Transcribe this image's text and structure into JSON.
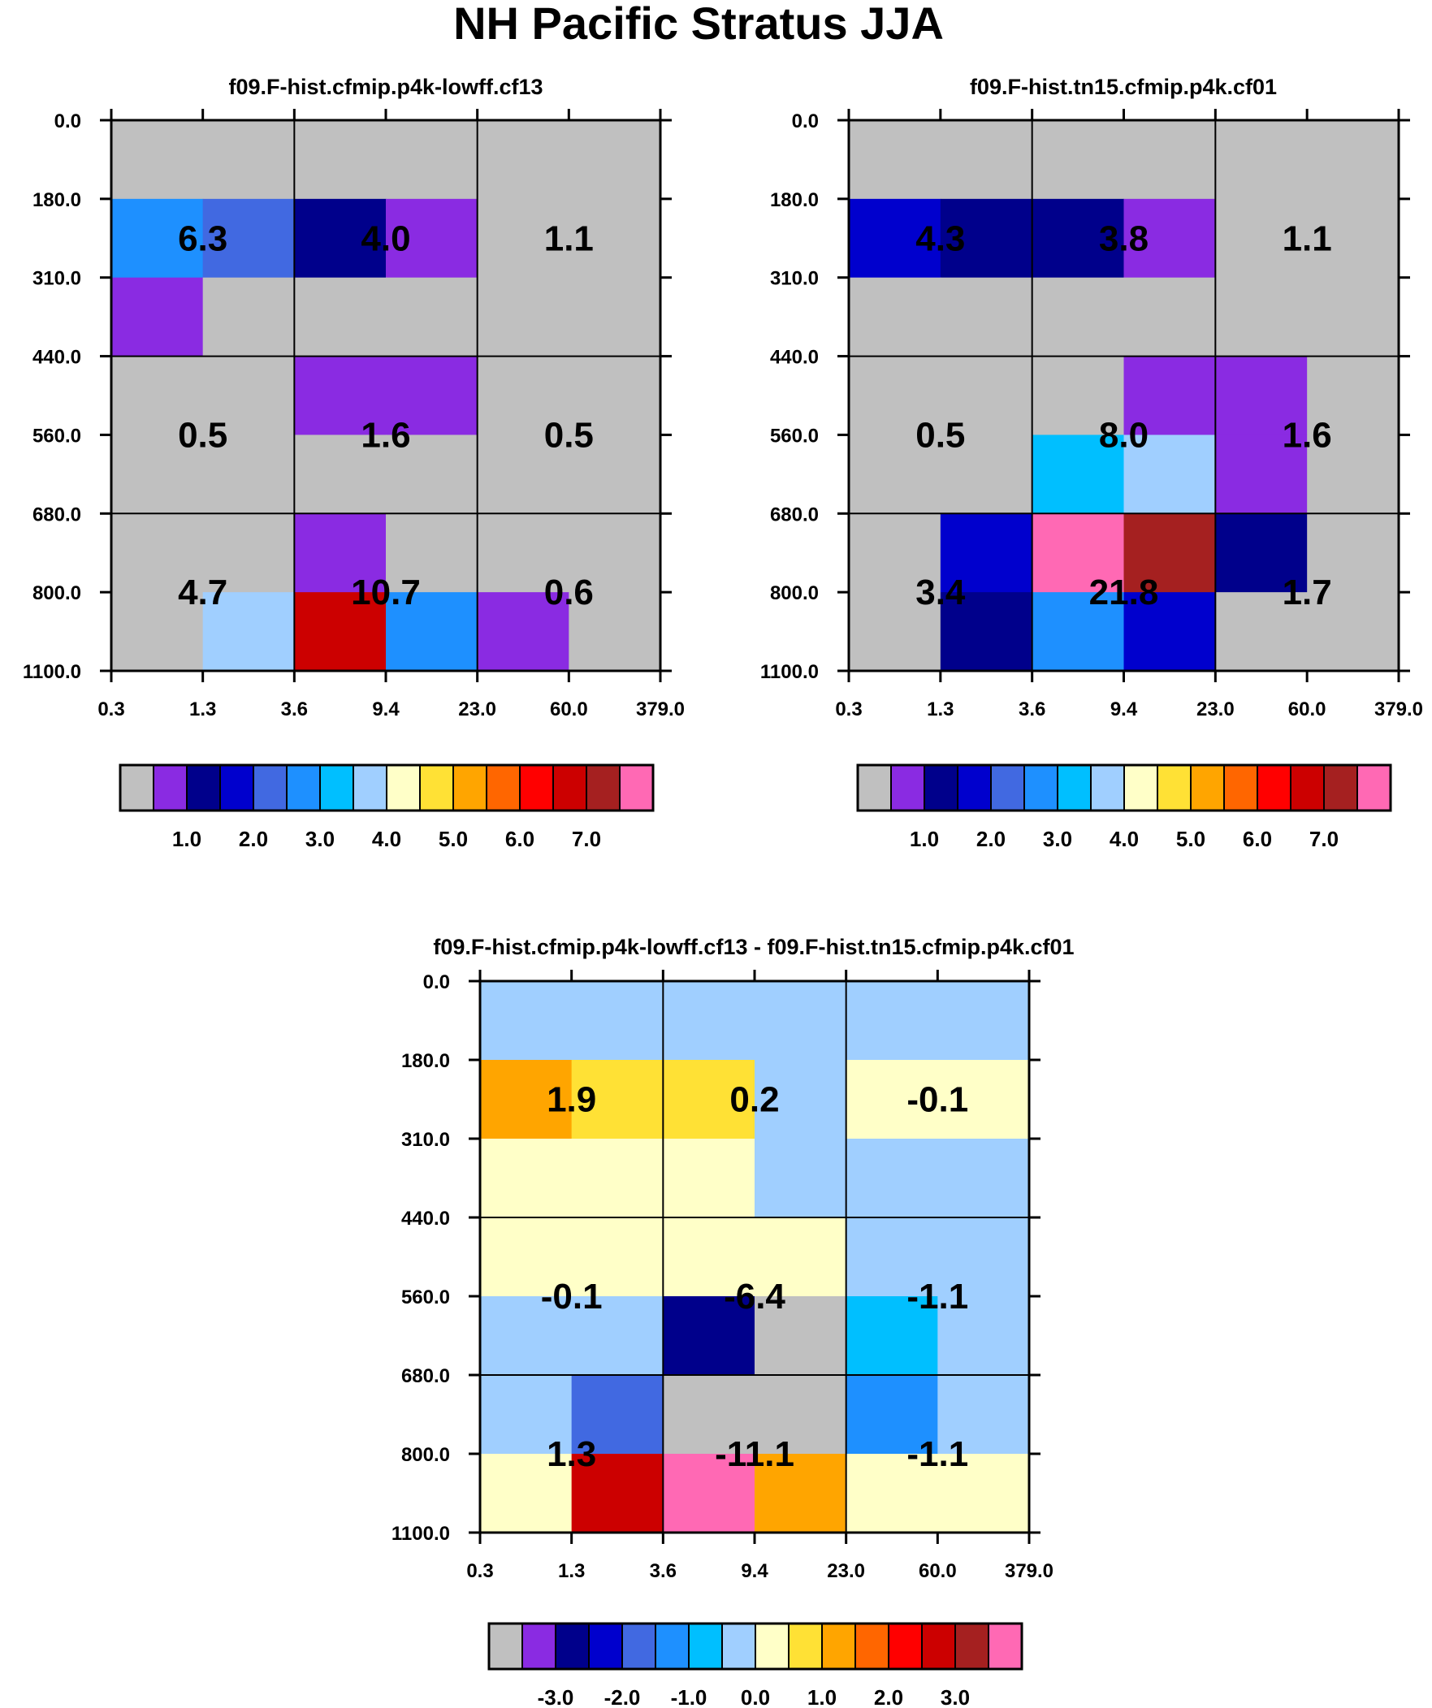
{
  "title": "NH Pacific Stratus JJA",
  "colors": {
    "cmap": [
      "#c0c0c0",
      "#8a2be2",
      "#00008b",
      "#0000cd",
      "#4169e1",
      "#1e90ff",
      "#00bfff",
      "#a0cfff",
      "#ffffc8",
      "#ffe135",
      "#ffa500",
      "#ff6600",
      "#ff0000",
      "#cc0000",
      "#a52020",
      "#ff69b4"
    ]
  },
  "chart_data": [
    {
      "type": "heatmap",
      "panel": "top-left",
      "title": "f09.F-hist.cfmip.p4k-lowff.cf13",
      "x_ticks": [
        "0.3",
        "1.3",
        "3.6",
        "9.4",
        "23.0",
        "60.0",
        "379.0"
      ],
      "y_ticks": [
        "0.0",
        "180.0",
        "310.0",
        "440.0",
        "560.0",
        "680.0",
        "800.0",
        "1100.0"
      ],
      "cells": [
        [
          0,
          0,
          0,
          0,
          0,
          0
        ],
        [
          5,
          4,
          2,
          1,
          0,
          0
        ],
        [
          1,
          0,
          0,
          0,
          0,
          0
        ],
        [
          0,
          0,
          1,
          1,
          0,
          0
        ],
        [
          0,
          0,
          0,
          0,
          0,
          0
        ],
        [
          0,
          0,
          1,
          0,
          0,
          0
        ],
        [
          0,
          7,
          13,
          5,
          1,
          0
        ]
      ],
      "block_values": [
        [
          "6.3",
          "4.0",
          "1.1"
        ],
        [
          "0.5",
          "1.6",
          "0.5"
        ],
        [
          "4.7",
          "10.7",
          "0.6"
        ]
      ],
      "colorbar_labels": [
        "1.0",
        "2.0",
        "3.0",
        "4.0",
        "5.0",
        "6.0",
        "7.0"
      ]
    },
    {
      "type": "heatmap",
      "panel": "top-right",
      "title": "f09.F-hist.tn15.cfmip.p4k.cf01",
      "x_ticks": [
        "0.3",
        "1.3",
        "3.6",
        "9.4",
        "23.0",
        "60.0",
        "379.0"
      ],
      "y_ticks": [
        "0.0",
        "180.0",
        "310.0",
        "440.0",
        "560.0",
        "680.0",
        "800.0",
        "1100.0"
      ],
      "cells": [
        [
          0,
          0,
          0,
          0,
          0,
          0
        ],
        [
          3,
          2,
          2,
          1,
          0,
          0
        ],
        [
          0,
          0,
          0,
          0,
          0,
          0
        ],
        [
          0,
          0,
          0,
          1,
          1,
          0
        ],
        [
          0,
          0,
          6,
          7,
          1,
          0
        ],
        [
          0,
          3,
          15,
          14,
          2,
          0
        ],
        [
          0,
          2,
          5,
          3,
          0,
          0
        ]
      ],
      "block_values": [
        [
          "4.3",
          "3.8",
          "1.1"
        ],
        [
          "0.5",
          "8.0",
          "1.6"
        ],
        [
          "3.4",
          "21.8",
          "1.7"
        ]
      ],
      "colorbar_labels": [
        "1.0",
        "2.0",
        "3.0",
        "4.0",
        "5.0",
        "6.0",
        "7.0"
      ]
    },
    {
      "type": "heatmap",
      "panel": "bottom",
      "title": "f09.F-hist.cfmip.p4k-lowff.cf13 - f09.F-hist.tn15.cfmip.p4k.cf01",
      "x_ticks": [
        "0.3",
        "1.3",
        "3.6",
        "9.4",
        "23.0",
        "60.0",
        "379.0"
      ],
      "y_ticks": [
        "0.0",
        "180.0",
        "310.0",
        "440.0",
        "560.0",
        "680.0",
        "800.0",
        "1100.0"
      ],
      "cells": [
        [
          7,
          7,
          7,
          7,
          7,
          7
        ],
        [
          10,
          9,
          9,
          7,
          8,
          8
        ],
        [
          8,
          8,
          8,
          7,
          7,
          7
        ],
        [
          8,
          8,
          8,
          8,
          7,
          7
        ],
        [
          7,
          7,
          2,
          0,
          6,
          7
        ],
        [
          7,
          4,
          0,
          0,
          5,
          7
        ],
        [
          8,
          13,
          15,
          10,
          8,
          8
        ]
      ],
      "block_values": [
        [
          "1.9",
          "0.2",
          "-0.1"
        ],
        [
          "-0.1",
          "-6.4",
          "-1.1"
        ],
        [
          "1.3",
          "-11.1",
          "-1.1"
        ]
      ],
      "colorbar_labels": [
        "-3.0",
        "-2.0",
        "-1.0",
        "0.0",
        "1.0",
        "2.0",
        "3.0"
      ]
    }
  ]
}
